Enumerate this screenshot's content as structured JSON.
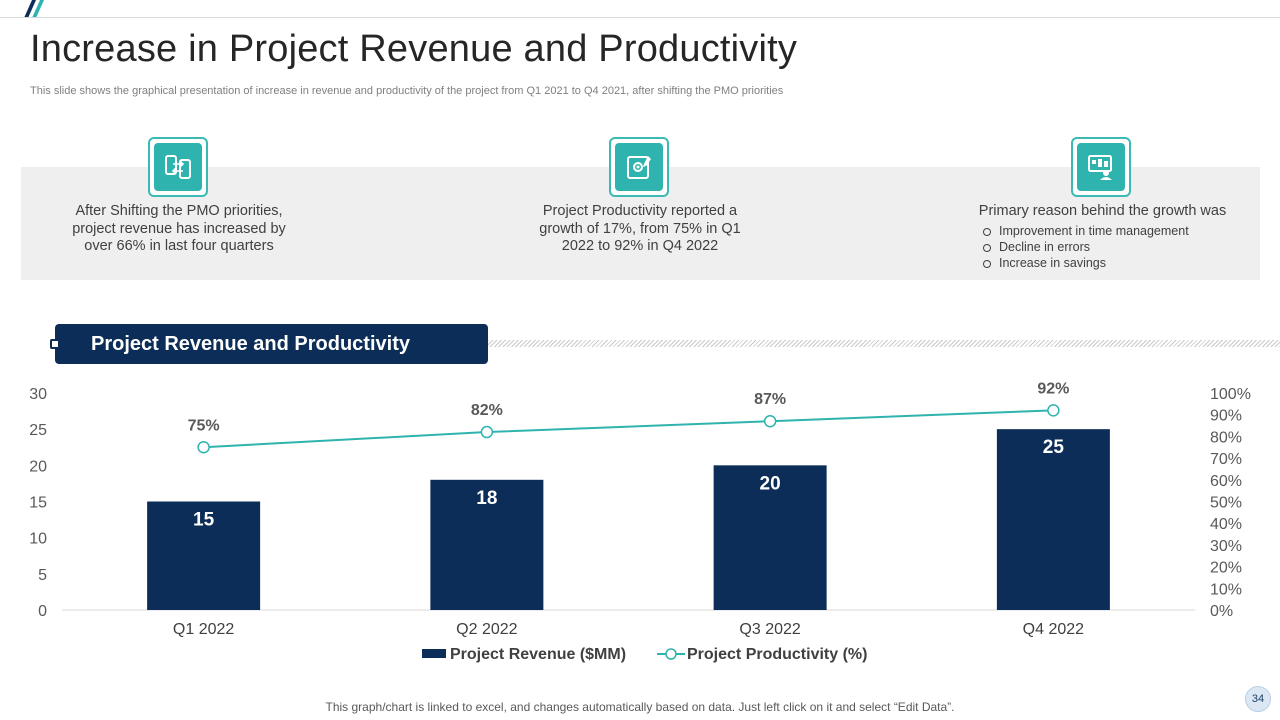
{
  "slide": {
    "title": "Increase in Project Revenue and Productivity",
    "subtitle": "This slide shows the graphical presentation of increase in revenue and productivity of the project from Q1 2021 to Q4 2021, after shifting the PMO  priorities",
    "page_number": "34",
    "footer_note": "This graph/chart is linked to excel, and changes automatically based on data. Just left click on it and select “Edit Data”."
  },
  "info": [
    {
      "text": "After Shifting the PMO priorities, project revenue has increased by over 66% in last four quarters",
      "icon": "mobile-transfer-icon"
    },
    {
      "text": "Project Productivity reported a growth of 17%, from 75% in Q1 2022 to 92% in Q4 2022",
      "icon": "settings-document-icon"
    },
    {
      "text": "Primary reason behind the growth was",
      "icon": "dashboard-user-icon",
      "bullets": [
        "Improvement  in time management",
        "Decline in errors",
        "Increase in savings"
      ]
    }
  ],
  "chart_banner": {
    "title": "Project Revenue and Productivity"
  },
  "colors": {
    "bar": "#0b2d57",
    "line": "#2fb3ae",
    "accent": "#3bb9b4",
    "band": "#efefef"
  },
  "chart_data": {
    "type": "bar",
    "categories": [
      "Q1 2022",
      "Q2 2022",
      "Q3 2022",
      "Q4 2022"
    ],
    "series": [
      {
        "name": "Project Revenue ($MM)",
        "type": "bar",
        "axis": "left",
        "values": [
          15,
          18,
          20,
          25
        ],
        "labels": [
          "15",
          "18",
          "20",
          "25"
        ]
      },
      {
        "name": "Project Productivity (%)",
        "type": "line",
        "axis": "right",
        "values": [
          75,
          82,
          87,
          92
        ],
        "labels": [
          "75%",
          "82%",
          "87%",
          "92%"
        ]
      }
    ],
    "y_left": {
      "min": 0,
      "max": 30,
      "ticks": [
        "0",
        "5",
        "10",
        "15",
        "20",
        "25",
        "30"
      ]
    },
    "y_right": {
      "min": 0,
      "max": 100,
      "ticks": [
        "0%",
        "10%",
        "20%",
        "30%",
        "40%",
        "50%",
        "60%",
        "70%",
        "80%",
        "90%",
        "100%"
      ]
    },
    "legend": [
      "Project Revenue ($MM)",
      "Project Productivity (%)"
    ],
    "legend_position": "bottom",
    "grid": false
  }
}
